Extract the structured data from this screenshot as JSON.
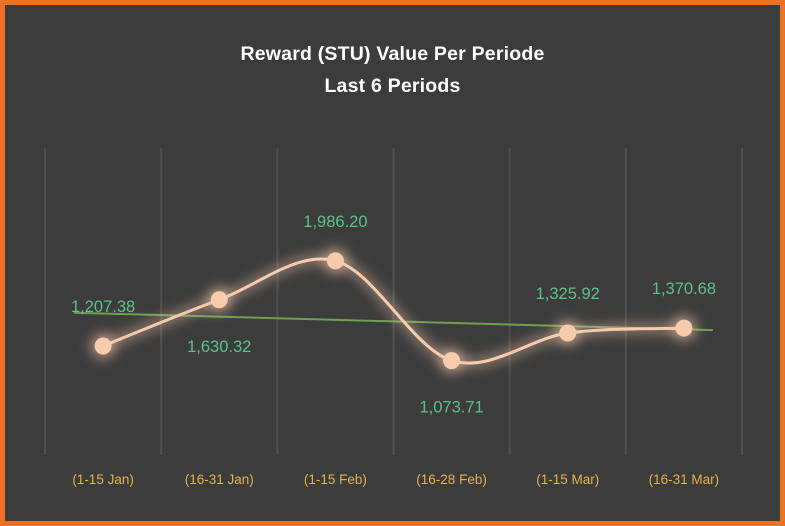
{
  "frame": {
    "background": "#3C3C3C",
    "border_color": "#ED7124"
  },
  "title": {
    "line1": "Reward (STU) Value Per Periode",
    "line2": "Last 6 Periods"
  },
  "chart_data": {
    "type": "line",
    "title": "Reward (STU) Value Per Periode",
    "subtitle": "Last 6 Periods",
    "categories": [
      "(1-15 Jan)",
      "(16-31 Jan)",
      "(1-15 Feb)",
      "(16-28 Feb)",
      "(1-15 Mar)",
      "(16-31 Mar)"
    ],
    "values": [
      1207.38,
      1630.32,
      1986.2,
      1073.71,
      1325.92,
      1370.68
    ],
    "data_labels": [
      "1,207.38",
      "1,630.32",
      "1,986.20",
      "1,073.71",
      "1,325.92",
      "1,370.68"
    ],
    "label_placement": [
      "above",
      "below",
      "above",
      "below",
      "above",
      "above"
    ],
    "ylim": [
      0,
      3000
    ],
    "grid": "vertical",
    "legend": "none",
    "smooth_line": true,
    "trendline": {
      "type": "linear",
      "color": "#7CB75A"
    },
    "series_color": "#F8CBAD",
    "label_color": "#5CC18D",
    "axis_label_color": "#E5B24E",
    "gridline_color": "#505050"
  }
}
